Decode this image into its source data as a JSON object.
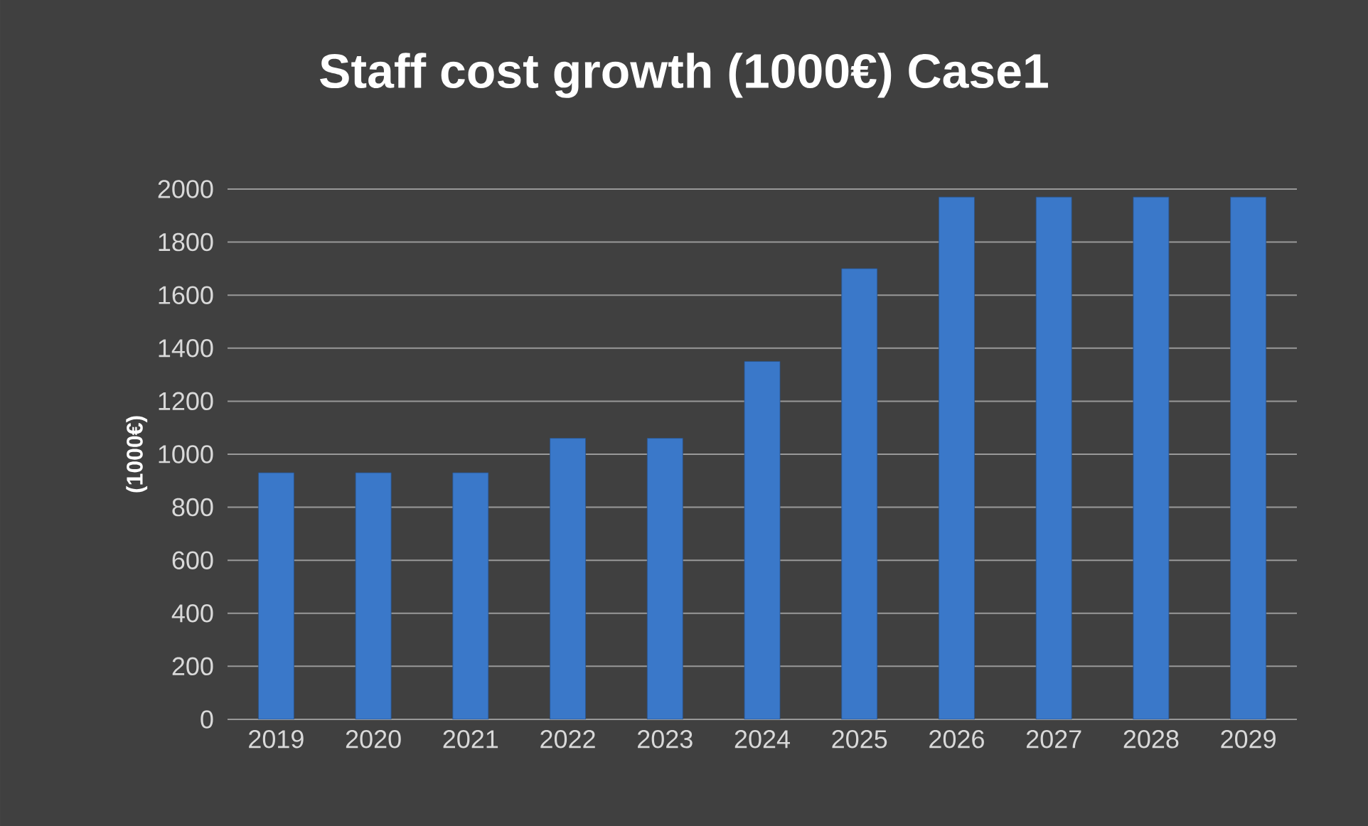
{
  "chart_data": {
    "type": "bar",
    "title": "Staff cost growth (1000€) Case1",
    "ylabel": "(1000€)",
    "categories": [
      "2019",
      "2020",
      "2021",
      "2022",
      "2023",
      "2024",
      "2025",
      "2026",
      "2027",
      "2028",
      "2029"
    ],
    "values": [
      930,
      930,
      930,
      1060,
      1060,
      1350,
      1700,
      1970,
      1970,
      1970,
      1970
    ],
    "color": "#3a78c9",
    "ylim": [
      0,
      2000
    ],
    "yticks": [
      0,
      200,
      400,
      600,
      800,
      1000,
      1200,
      1400,
      1600,
      1800,
      2000
    ],
    "grid": "y"
  }
}
